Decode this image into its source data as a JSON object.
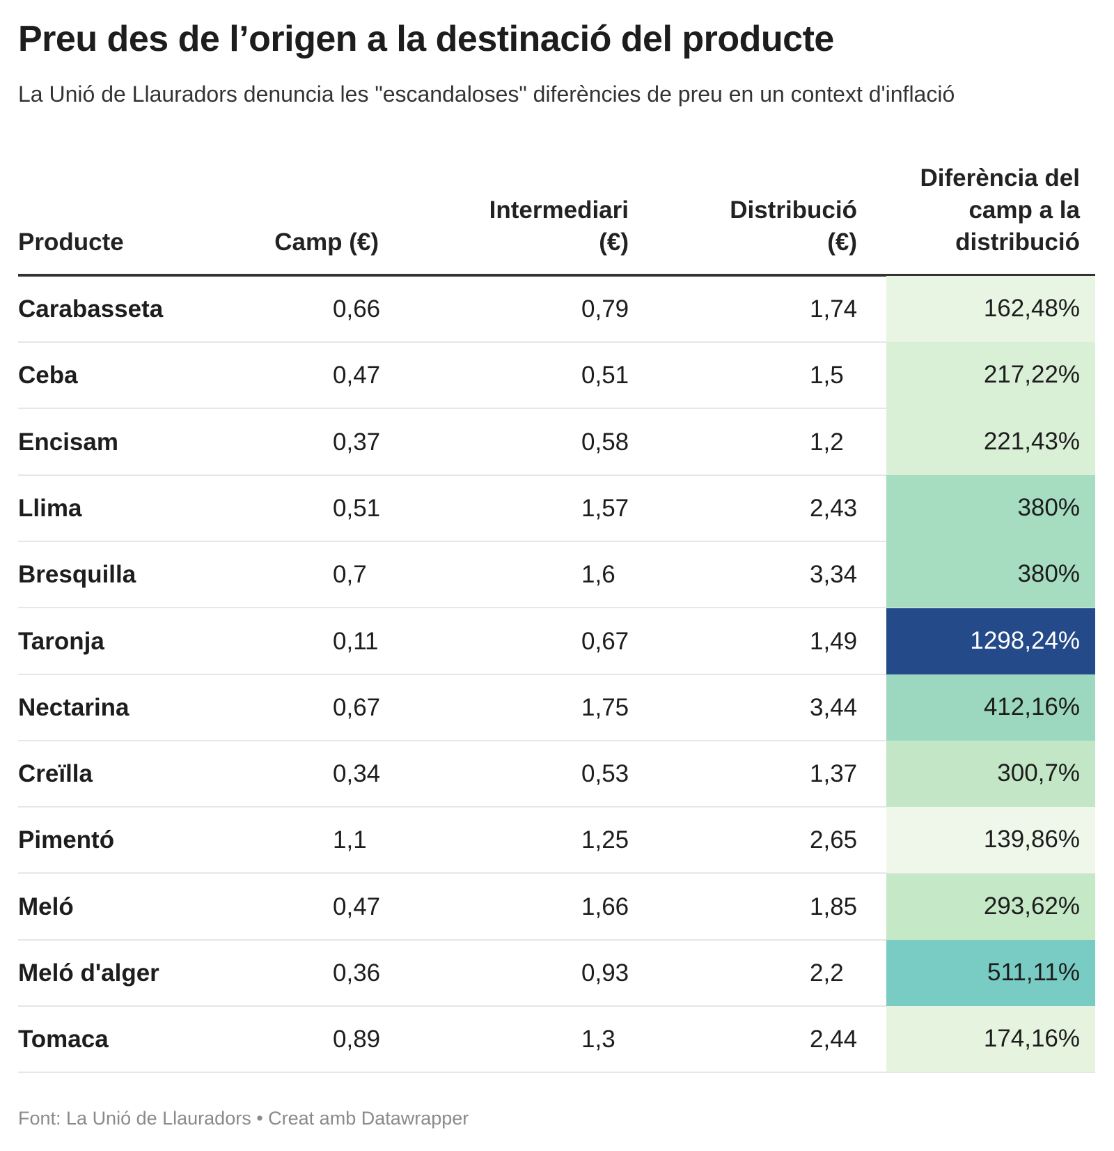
{
  "title": "Preu des de l’origen a la destinació del producte",
  "subtitle": "La Unió de Llauradors denuncia les \"escandaloses\" diferències de preu en un context d'inflació",
  "footer": "Font: La Unió de Llauradors • Creat amb Datawrapper",
  "chart_data": {
    "type": "table",
    "columns": [
      "Producte",
      "Camp (€)",
      "Intermediari (€)",
      "Distribució (€)",
      "Diferència del camp a la distribució"
    ],
    "rows": [
      {
        "product": "Carabasseta",
        "camp": "0,66",
        "intermediari": "0,79",
        "distribucio": "1,74",
        "diferencia": "162,48%",
        "color": "#e8f5e2"
      },
      {
        "product": "Ceba",
        "camp": "0,47",
        "intermediari": "0,51",
        "distribucio": "1,5",
        "diferencia": "217,22%",
        "color": "#d9efd6"
      },
      {
        "product": "Encisam",
        "camp": "0,37",
        "intermediari": "0,58",
        "distribucio": "1,2",
        "diferencia": "221,43%",
        "color": "#d9efd6"
      },
      {
        "product": "Llima",
        "camp": "0,51",
        "intermediari": "1,57",
        "distribucio": "2,43",
        "diferencia": "380%",
        "color": "#a6dcc0"
      },
      {
        "product": "Bresquilla",
        "camp": "0,7",
        "intermediari": "1,6",
        "distribucio": "3,34",
        "diferencia": "380%",
        "color": "#a6dcc0"
      },
      {
        "product": "Taronja",
        "camp": "0,11",
        "intermediari": "0,67",
        "distribucio": "1,49",
        "diferencia": "1298,24%",
        "color": "#244a8a",
        "text_color": "#ffffff"
      },
      {
        "product": "Nectarina",
        "camp": "0,67",
        "intermediari": "1,75",
        "distribucio": "3,44",
        "diferencia": "412,16%",
        "color": "#9bd8bf"
      },
      {
        "product": "Creïlla",
        "camp": "0,34",
        "intermediari": "0,53",
        "distribucio": "1,37",
        "diferencia": "300,7%",
        "color": "#c3e7c6"
      },
      {
        "product": "Pimentó",
        "camp": "1,1",
        "intermediari": "1,25",
        "distribucio": "2,65",
        "diferencia": "139,86%",
        "color": "#eef7e9"
      },
      {
        "product": "Meló",
        "camp": "0,47",
        "intermediari": "1,66",
        "distribucio": "1,85",
        "diferencia": "293,62%",
        "color": "#c5e8c7"
      },
      {
        "product": "Meló d'alger",
        "camp": "0,36",
        "intermediari": "0,93",
        "distribucio": "2,2",
        "diferencia": "511,11%",
        "color": "#79ccc4"
      },
      {
        "product": "Tomaca",
        "camp": "0,89",
        "intermediari": "1,3",
        "distribucio": "2,44",
        "diferencia": "174,16%",
        "color": "#e6f4df"
      }
    ]
  }
}
